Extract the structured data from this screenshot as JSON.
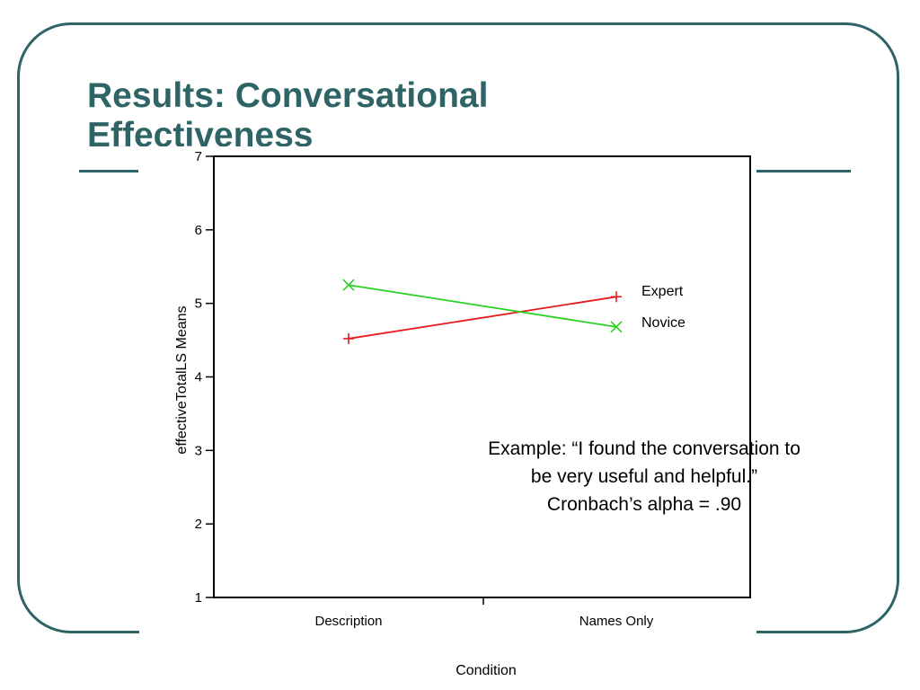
{
  "slide": {
    "title": "Results: Conversational Effectiveness",
    "frame_color": "#2f6467"
  },
  "annotation": {
    "lines": [
      "Example: “I found the conversation to",
      "be very useful and helpful.”",
      "Cronbach’s alpha = .90"
    ]
  },
  "chart_data": {
    "type": "line",
    "title": "",
    "xlabel": "Condition",
    "ylabel": "effectiveTotalLS Means",
    "categories": [
      "Description",
      "Names Only"
    ],
    "ylim": [
      1,
      7
    ],
    "yticks": [
      1,
      2,
      3,
      4,
      5,
      6,
      7
    ],
    "grid": false,
    "legend": "right, labels at line ends",
    "series": [
      {
        "name": "Expert",
        "values": [
          4.52,
          5.09
        ],
        "color": "#e8191e",
        "marker": "plus"
      },
      {
        "name": "Novice",
        "values": [
          5.25,
          4.68
        ],
        "color": "#2ad11f",
        "marker": "x"
      }
    ]
  }
}
